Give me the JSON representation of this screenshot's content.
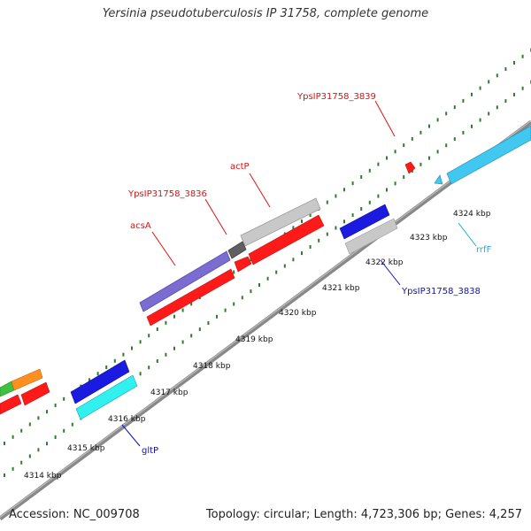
{
  "title": "Yersinia pseudotuberculosis IP 31758, complete genome",
  "footer": {
    "accession": "Accession: NC_009708",
    "summary": "Topology: circular; Length: 4,723,306 bp; Genes: 4,257"
  },
  "scale_labels": [
    "4314 kbp",
    "4315 kbp",
    "4316 kbp",
    "4317 kbp",
    "4318 kbp",
    "4319 kbp",
    "4320 kbp",
    "4321 kbp",
    "4322 kbp",
    "4323 kbp",
    "4324 kbp"
  ],
  "gene_labels": [
    {
      "text": "YpsIP31758_3839",
      "color": "#e01010"
    },
    {
      "text": "actP",
      "color": "#e01010"
    },
    {
      "text": "YpsIP31758_3836",
      "color": "#e01010"
    },
    {
      "text": "acsA",
      "color": "#e01010"
    },
    {
      "text": "rrfF",
      "color": "#1ab0e0"
    },
    {
      "text": "YpsIP31758_3838",
      "color": "#1010c0"
    },
    {
      "text": "gltP",
      "color": "#1010c0"
    }
  ],
  "colors": {
    "backbone": "#888888",
    "tick": "#2e7d2e",
    "cds_forward": "#ff1a1a",
    "rna": "#40c8f0",
    "gray_gene": "#c0c0c0",
    "blue_gene": "#1a1ae0",
    "purple_gene": "#7a6cd0",
    "cyan_gene": "#30f0f0",
    "green_gene": "#40c040",
    "orange_gene": "#ff9020"
  }
}
